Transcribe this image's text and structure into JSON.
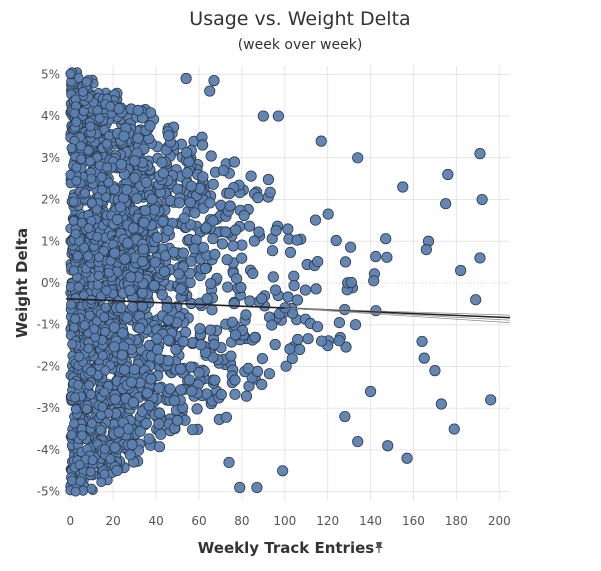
{
  "chart_data": {
    "type": "scatter",
    "title": "Usage vs. Weight Delta",
    "subtitle": "(week over week)",
    "xlabel": "Weekly Track Entries",
    "ylabel": "Weight Delta",
    "pin_icon": "pin-icon",
    "xlim": [
      -2,
      205
    ],
    "ylim": [
      -5.2,
      5.2
    ],
    "x_ticks": [
      0,
      20,
      40,
      60,
      80,
      100,
      120,
      140,
      160,
      180,
      200
    ],
    "x_tick_labels": [
      "0",
      "20",
      "40",
      "60",
      "80",
      "100",
      "120",
      "140",
      "160",
      "180",
      "200"
    ],
    "y_ticks": [
      5,
      4,
      3,
      2,
      1,
      0,
      -1,
      -2,
      -3,
      -4,
      -5
    ],
    "y_tick_labels": [
      "5%",
      "4%",
      "3%",
      "2%",
      "1%",
      "0%",
      "-1%",
      "-2%",
      "-3%",
      "-4%",
      "-5%"
    ],
    "grid": true,
    "point_color": "#5b7fb0",
    "point_outline": "#2d3a4a",
    "trend_line": {
      "intercept": -0.38,
      "slope": -0.0022
    },
    "outliers": [
      {
        "x": 54,
        "y": 4.9
      },
      {
        "x": 65,
        "y": 4.6
      },
      {
        "x": 67,
        "y": 4.85
      },
      {
        "x": 90,
        "y": 4.0
      },
      {
        "x": 97,
        "y": 4.0
      },
      {
        "x": 117,
        "y": 3.4
      },
      {
        "x": 134,
        "y": 3.0
      },
      {
        "x": 155,
        "y": 2.3
      },
      {
        "x": 167,
        "y": 1.0
      },
      {
        "x": 166,
        "y": 0.8
      },
      {
        "x": 176,
        "y": 2.6
      },
      {
        "x": 175,
        "y": 1.9
      },
      {
        "x": 191,
        "y": 3.1
      },
      {
        "x": 192,
        "y": 2.0
      },
      {
        "x": 191,
        "y": 0.6
      },
      {
        "x": 182,
        "y": 0.3
      },
      {
        "x": 189,
        "y": -0.4
      },
      {
        "x": 196,
        "y": -2.8
      },
      {
        "x": 179,
        "y": -3.5
      },
      {
        "x": 173,
        "y": -2.9
      },
      {
        "x": 170,
        "y": -2.1
      },
      {
        "x": 157,
        "y": -4.2
      },
      {
        "x": 148,
        "y": -3.9
      },
      {
        "x": 140,
        "y": -2.6
      },
      {
        "x": 134,
        "y": -3.8
      },
      {
        "x": 128,
        "y": -3.2
      },
      {
        "x": 99,
        "y": -4.5
      },
      {
        "x": 87,
        "y": -4.9
      },
      {
        "x": 79,
        "y": -4.9
      },
      {
        "x": 74,
        "y": -4.3
      },
      {
        "x": 164,
        "y": -1.4
      },
      {
        "x": 165,
        "y": -1.8
      }
    ]
  }
}
